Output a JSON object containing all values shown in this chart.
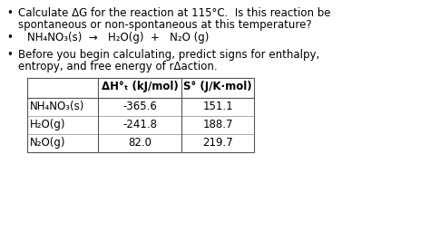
{
  "background_color": "#ffffff",
  "bullet1_line1": "Calculate ΔG for the reaction at 115°C.  Is this reaction be",
  "bullet1_line2": "spontaneous or non-spontaneous at this temperature?",
  "bullet2_line1": "Before you begin calculating, predict signs for enthalpy,",
  "bullet2_line2": "entropy, and free energy of rΔaction.",
  "table_col0": [
    "NH₄NO₃(s)",
    "H₂O(g)",
    "N₂O(g)"
  ],
  "table_col1": [
    "-365.6",
    "-241.8",
    "82.0"
  ],
  "table_col2": [
    "151.1",
    "188.7",
    "219.7"
  ],
  "font_size": 8.5,
  "table_font_size": 8.5
}
